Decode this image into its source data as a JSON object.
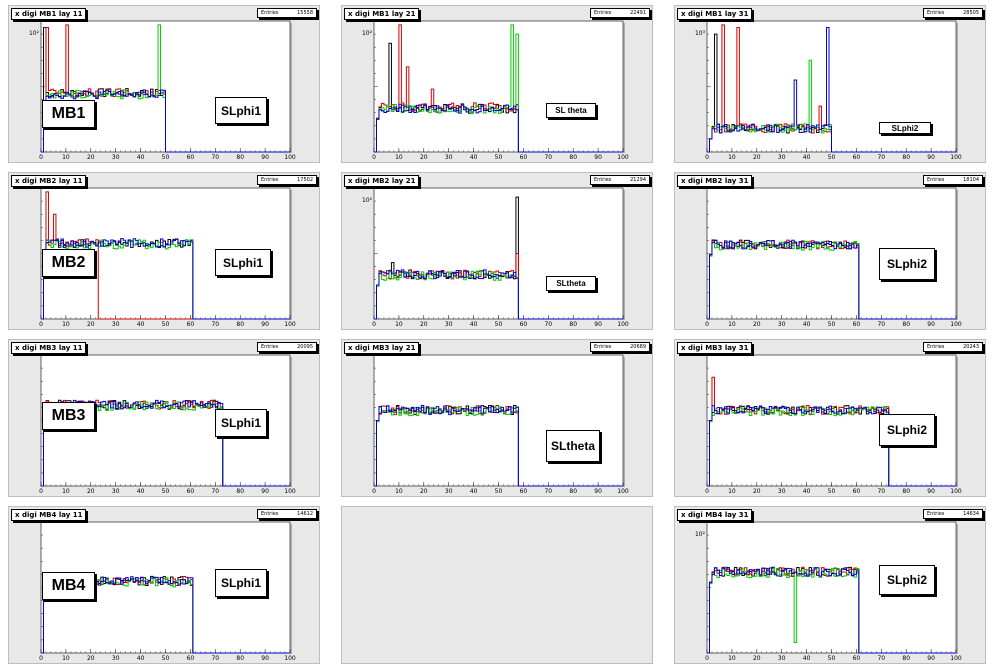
{
  "colors": {
    "pad_bg": "#e8e8e8",
    "frame": "#ffffff",
    "axis": "#000000",
    "red": "#d40000",
    "green": "#00cc00",
    "blue": "#0000cc",
    "black": "#000000"
  },
  "stats_label": "Entries",
  "chart_data": [
    {
      "id": "mb1-lay11",
      "type": "line",
      "title": "x digi MB1 lay 11",
      "entries": "15558",
      "chamber": "MB1",
      "sl_label": "SLphi1",
      "log_y": true,
      "y_tick": "10²",
      "x_ticks": [
        0,
        10,
        20,
        30,
        40,
        50,
        60,
        70,
        80,
        90,
        100
      ],
      "xlim": [
        0,
        100
      ],
      "ylim": [
        0,
        1
      ],
      "series": [
        {
          "color": "black",
          "edge": 50,
          "level": 0.45,
          "spikes": [
            [
              1,
              0.95
            ]
          ]
        },
        {
          "color": "red",
          "edge": 50,
          "level": 0.45,
          "spikes": [
            [
              2,
              0.95
            ],
            [
              10,
              0.97
            ]
          ]
        },
        {
          "color": "green",
          "edge": 50,
          "level": 0.44,
          "spikes": [
            [
              47,
              0.97
            ],
            [
              50,
              0.95
            ]
          ]
        },
        {
          "color": "blue",
          "edge": 50,
          "level": 0.44,
          "spikes": []
        }
      ]
    },
    {
      "id": "mb1-lay21",
      "type": "line",
      "title": "x digi MB1 lay 21",
      "entries": "22491",
      "chamber": "",
      "sl_label": "SL theta",
      "log_y": true,
      "y_tick": "10²",
      "x_ticks": [
        0,
        10,
        20,
        30,
        40,
        50,
        60,
        70,
        80,
        90,
        100
      ],
      "xlim": [
        0,
        100
      ],
      "ylim": [
        0,
        1
      ],
      "series": [
        {
          "color": "black",
          "edge": 58,
          "level": 0.33,
          "spikes": [
            [
              6,
              0.83
            ]
          ]
        },
        {
          "color": "red",
          "edge": 58,
          "level": 0.34,
          "spikes": [
            [
              10,
              0.97
            ],
            [
              13,
              0.65
            ],
            [
              23,
              0.48
            ]
          ]
        },
        {
          "color": "green",
          "edge": 58,
          "level": 0.33,
          "spikes": [
            [
              55,
              0.97
            ],
            [
              57,
              0.9
            ]
          ]
        },
        {
          "color": "blue",
          "edge": 58,
          "level": 0.33,
          "spikes": []
        }
      ]
    },
    {
      "id": "mb1-lay31",
      "type": "line",
      "title": "x digi MB1 lay 31",
      "entries": "28505",
      "chamber": "",
      "sl_label": "SLphi2",
      "log_y": true,
      "y_tick": "10³",
      "x_ticks": [
        0,
        10,
        20,
        30,
        40,
        50,
        60,
        70,
        80,
        90,
        100
      ],
      "xlim": [
        0,
        100
      ],
      "ylim": [
        0,
        1
      ],
      "series": [
        {
          "color": "black",
          "edge": 50,
          "level": 0.18,
          "spikes": [
            [
              3,
              0.9
            ]
          ]
        },
        {
          "color": "red",
          "edge": 50,
          "level": 0.18,
          "spikes": [
            [
              6,
              0.97
            ],
            [
              12,
              0.95
            ],
            [
              45,
              0.35
            ]
          ]
        },
        {
          "color": "green",
          "edge": 50,
          "level": 0.18,
          "spikes": [
            [
              41,
              0.7
            ],
            [
              50,
              0.97
            ]
          ]
        },
        {
          "color": "blue",
          "edge": 50,
          "level": 0.18,
          "spikes": [
            [
              35,
              0.55
            ],
            [
              48,
              0.95
            ]
          ]
        }
      ]
    },
    {
      "id": "mb2-lay11",
      "type": "line",
      "title": "x digi MB2 lay 11",
      "entries": "17502",
      "chamber": "MB2",
      "sl_label": "SLphi1",
      "log_y": false,
      "y_tick": "",
      "x_ticks": [
        0,
        10,
        20,
        30,
        40,
        50,
        60,
        70,
        80,
        90,
        100
      ],
      "xlim": [
        0,
        100
      ],
      "ylim": [
        0,
        1
      ],
      "series": [
        {
          "color": "black",
          "edge": 61,
          "level": 0.58,
          "spikes": []
        },
        {
          "color": "red",
          "edge": 23,
          "level": 0.58,
          "spikes": [
            [
              2,
              0.97
            ],
            [
              5,
              0.8
            ]
          ]
        },
        {
          "color": "green",
          "edge": 61,
          "level": 0.57,
          "spikes": []
        },
        {
          "color": "blue",
          "edge": 61,
          "level": 0.58,
          "spikes": []
        }
      ]
    },
    {
      "id": "mb2-lay21",
      "type": "line",
      "title": "x digi MB2 lay 21",
      "entries": "21294",
      "chamber": "",
      "sl_label": "SLtheta",
      "log_y": true,
      "y_tick": "10²",
      "x_ticks": [
        0,
        10,
        20,
        30,
        40,
        50,
        60,
        70,
        80,
        90,
        100
      ],
      "xlim": [
        0,
        100
      ],
      "ylim": [
        0,
        1
      ],
      "series": [
        {
          "color": "black",
          "edge": 58,
          "level": 0.34,
          "spikes": [
            [
              7,
              0.43
            ],
            [
              57,
              0.93
            ]
          ]
        },
        {
          "color": "red",
          "edge": 58,
          "level": 0.34,
          "spikes": [
            [
              57,
              0.5
            ]
          ]
        },
        {
          "color": "green",
          "edge": 58,
          "level": 0.33,
          "spikes": []
        },
        {
          "color": "blue",
          "edge": 58,
          "level": 0.34,
          "spikes": []
        }
      ]
    },
    {
      "id": "mb2-lay31",
      "type": "line",
      "title": "x digi MB2 lay 31",
      "entries": "18104",
      "chamber": "",
      "sl_label": "SLphi2",
      "log_y": false,
      "y_tick": "",
      "x_ticks": [
        0,
        10,
        20,
        30,
        40,
        50,
        60,
        70,
        80,
        90,
        100
      ],
      "xlim": [
        0,
        100
      ],
      "ylim": [
        0,
        1
      ],
      "series": [
        {
          "color": "black",
          "edge": 61,
          "level": 0.57,
          "spikes": []
        },
        {
          "color": "red",
          "edge": 61,
          "level": 0.57,
          "spikes": []
        },
        {
          "color": "green",
          "edge": 61,
          "level": 0.56,
          "spikes": [
            [
              61,
              0.97
            ]
          ]
        },
        {
          "color": "blue",
          "edge": 61,
          "level": 0.57,
          "spikes": []
        }
      ]
    },
    {
      "id": "mb3-lay11",
      "type": "line",
      "title": "x digi MB3 lay 11",
      "entries": "20095",
      "chamber": "MB3",
      "sl_label": "SLphi1",
      "log_y": false,
      "y_tick": "",
      "x_ticks": [
        0,
        10,
        20,
        30,
        40,
        50,
        60,
        70,
        80,
        90,
        100
      ],
      "xlim": [
        0,
        100
      ],
      "ylim": [
        0,
        1
      ],
      "series": [
        {
          "color": "black",
          "edge": 73,
          "level": 0.62,
          "spikes": []
        },
        {
          "color": "red",
          "edge": 73,
          "level": 0.62,
          "spikes": []
        },
        {
          "color": "green",
          "edge": 73,
          "level": 0.61,
          "spikes": []
        },
        {
          "color": "blue",
          "edge": 73,
          "level": 0.62,
          "spikes": []
        }
      ]
    },
    {
      "id": "mb3-lay21",
      "type": "line",
      "title": "x digi MB3 lay 21",
      "entries": "20689",
      "chamber": "",
      "sl_label": "SLtheta",
      "log_y": false,
      "y_tick": "",
      "x_ticks": [
        0,
        10,
        20,
        30,
        40,
        50,
        60,
        70,
        80,
        90,
        100
      ],
      "xlim": [
        0,
        100
      ],
      "ylim": [
        0,
        1
      ],
      "series": [
        {
          "color": "black",
          "edge": 58,
          "level": 0.58,
          "spikes": []
        },
        {
          "color": "red",
          "edge": 58,
          "level": 0.58,
          "spikes": []
        },
        {
          "color": "green",
          "edge": 58,
          "level": 0.57,
          "spikes": []
        },
        {
          "color": "blue",
          "edge": 58,
          "level": 0.58,
          "spikes": []
        }
      ]
    },
    {
      "id": "mb3-lay31",
      "type": "line",
      "title": "x digi MB3 lay 31",
      "entries": "20243",
      "chamber": "",
      "sl_label": "SLphi2",
      "log_y": false,
      "y_tick": "",
      "x_ticks": [
        0,
        10,
        20,
        30,
        40,
        50,
        60,
        70,
        80,
        90,
        100
      ],
      "xlim": [
        0,
        100
      ],
      "ylim": [
        0,
        1
      ],
      "series": [
        {
          "color": "black",
          "edge": 73,
          "level": 0.58,
          "spikes": []
        },
        {
          "color": "red",
          "edge": 73,
          "level": 0.58,
          "spikes": [
            [
              2,
              0.83
            ]
          ]
        },
        {
          "color": "green",
          "edge": 73,
          "level": 0.57,
          "spikes": []
        },
        {
          "color": "blue",
          "edge": 73,
          "level": 0.58,
          "spikes": []
        }
      ]
    },
    {
      "id": "mb4-lay11",
      "type": "line",
      "title": "x digi MB4 lay 11",
      "entries": "14612",
      "chamber": "MB4",
      "sl_label": "SLphi1",
      "log_y": false,
      "y_tick": "",
      "x_ticks": [
        0,
        10,
        20,
        30,
        40,
        50,
        60,
        70,
        80,
        90,
        100
      ],
      "xlim": [
        0,
        100
      ],
      "ylim": [
        0,
        1
      ],
      "series": [
        {
          "color": "black",
          "edge": 61,
          "level": 0.55,
          "spikes": []
        },
        {
          "color": "red",
          "edge": 61,
          "level": 0.55,
          "spikes": []
        },
        {
          "color": "green",
          "edge": 61,
          "level": 0.54,
          "spikes": [
            [
              61,
              0.78
            ]
          ]
        },
        {
          "color": "blue",
          "edge": 61,
          "level": 0.55,
          "spikes": []
        }
      ]
    },
    null,
    {
      "id": "mb4-lay31",
      "type": "line",
      "title": "x digi MB4 lay 31",
      "entries": "14634",
      "chamber": "",
      "sl_label": "SLphi2",
      "log_y": true,
      "y_tick": "10²",
      "x_ticks": [
        0,
        10,
        20,
        30,
        40,
        50,
        60,
        70,
        80,
        90,
        100
      ],
      "xlim": [
        0,
        100
      ],
      "ylim": [
        0,
        1
      ],
      "series": [
        {
          "color": "black",
          "edge": 61,
          "level": 0.62,
          "spikes": []
        },
        {
          "color": "red",
          "edge": 61,
          "level": 0.62,
          "spikes": []
        },
        {
          "color": "green",
          "edge": 61,
          "level": 0.61,
          "spikes": [
            [
              35,
              0.08
            ]
          ]
        },
        {
          "color": "blue",
          "edge": 61,
          "level": 0.62,
          "spikes": []
        }
      ]
    }
  ]
}
